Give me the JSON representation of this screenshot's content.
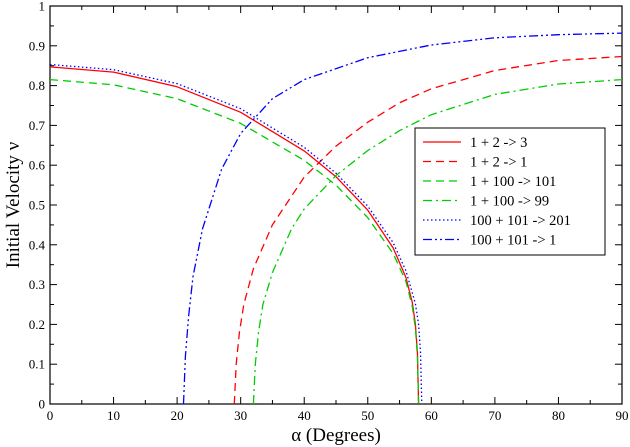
{
  "chart_data": {
    "type": "line",
    "title": "",
    "xlabel": "α  (Degrees)",
    "ylabel": "Initial Velocity  ν",
    "xlim": [
      0,
      90
    ],
    "ylim": [
      0,
      1
    ],
    "x_ticks": [
      0,
      10,
      20,
      30,
      40,
      50,
      60,
      70,
      80,
      90
    ],
    "y_ticks": [
      0,
      0.1,
      0.2,
      0.3,
      0.4,
      0.5,
      0.6,
      0.7,
      0.8,
      0.9,
      1
    ],
    "x_tick_labels": [
      "0",
      "10",
      "20",
      "30",
      "40",
      "50",
      "60",
      "70",
      "80",
      "90"
    ],
    "y_tick_labels": [
      "0",
      "0.1",
      "0.2",
      "0.3",
      "0.4",
      "0.5",
      "0.6",
      "0.7",
      "0.8",
      "0.9",
      "1"
    ],
    "grid": false,
    "legend_position": "right",
    "series": [
      {
        "name": "1 + 2 -> 3",
        "color": "#ff0000",
        "dash": "solid",
        "x": [
          0,
          10,
          20,
          30,
          40,
          45,
          50,
          54,
          56,
          57,
          57.5,
          57.8,
          58
        ],
        "y": [
          0.847,
          0.834,
          0.797,
          0.733,
          0.636,
          0.571,
          0.487,
          0.392,
          0.318,
          0.255,
          0.2,
          0.13,
          0
        ]
      },
      {
        "name": "1 + 2 -> 1",
        "color": "#ff0000",
        "dash": "dashed",
        "x": [
          29,
          29.3,
          29.8,
          30.5,
          32,
          35,
          40,
          45,
          50,
          55,
          60,
          70,
          80,
          90
        ],
        "y": [
          0,
          0.1,
          0.18,
          0.25,
          0.34,
          0.45,
          0.57,
          0.648,
          0.708,
          0.757,
          0.792,
          0.838,
          0.863,
          0.873
        ]
      },
      {
        "name": "1 + 100 -> 101",
        "color": "#00cc00",
        "dash": "dashed",
        "x": [
          0,
          10,
          20,
          30,
          40,
          45,
          50,
          54,
          56,
          57,
          57.5,
          57.8,
          58
        ],
        "y": [
          0.815,
          0.802,
          0.767,
          0.705,
          0.612,
          0.55,
          0.468,
          0.378,
          0.308,
          0.245,
          0.19,
          0.12,
          0
        ]
      },
      {
        "name": "1 + 100 -> 99",
        "color": "#00cc00",
        "dash": "dashdot",
        "x": [
          32,
          32.3,
          32.8,
          33.5,
          35,
          38,
          40,
          45,
          50,
          55,
          60,
          70,
          80,
          90
        ],
        "y": [
          0,
          0.1,
          0.18,
          0.25,
          0.33,
          0.44,
          0.49,
          0.574,
          0.637,
          0.687,
          0.727,
          0.778,
          0.804,
          0.815
        ]
      },
      {
        "name": "100 + 101 -> 201",
        "color": "#0000ff",
        "dash": "dotted",
        "x": [
          0,
          10,
          20,
          30,
          40,
          45,
          50,
          54,
          56,
          57.5,
          58,
          58.3,
          58.5
        ],
        "y": [
          0.853,
          0.84,
          0.805,
          0.742,
          0.645,
          0.58,
          0.497,
          0.405,
          0.335,
          0.252,
          0.2,
          0.13,
          0
        ]
      },
      {
        "name": "100 + 101 -> 1",
        "color": "#0000ff",
        "dash": "dashdotdot",
        "x": [
          21,
          21.3,
          21.8,
          22.5,
          24,
          27,
          30,
          35,
          40,
          50,
          60,
          70,
          80,
          90
        ],
        "y": [
          0,
          0.12,
          0.22,
          0.32,
          0.44,
          0.59,
          0.68,
          0.767,
          0.815,
          0.87,
          0.902,
          0.92,
          0.928,
          0.932
        ]
      }
    ]
  }
}
